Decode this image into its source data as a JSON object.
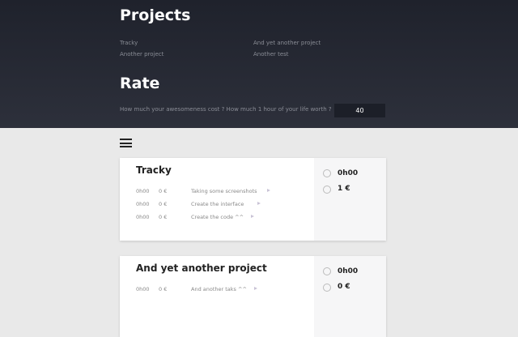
{
  "header": {
    "title": "Projects",
    "projects": [
      "Tracky",
      "And yet another project",
      "Another project",
      "Another test"
    ],
    "rate_title": "Rate",
    "rate_question": "How much your awesomeness cost ? How much 1 hour of your life worth ?",
    "rate_value": "40"
  },
  "cards": [
    {
      "title": "Tracky",
      "total_time": "0h00",
      "total_money": "1 €",
      "tasks": [
        [
          "0h00",
          "0 €",
          "Taking some screenshots"
        ],
        [
          "0h00",
          "0 €",
          "Create the interface"
        ],
        [
          "0h00",
          "0 €",
          "Create the code ^^"
        ]
      ]
    },
    {
      "title": "And yet another project",
      "total_time": "0h00",
      "total_money": "0 €",
      "tasks": [
        [
          "0h00",
          "0 €",
          "And another taks ^^"
        ]
      ]
    }
  ]
}
